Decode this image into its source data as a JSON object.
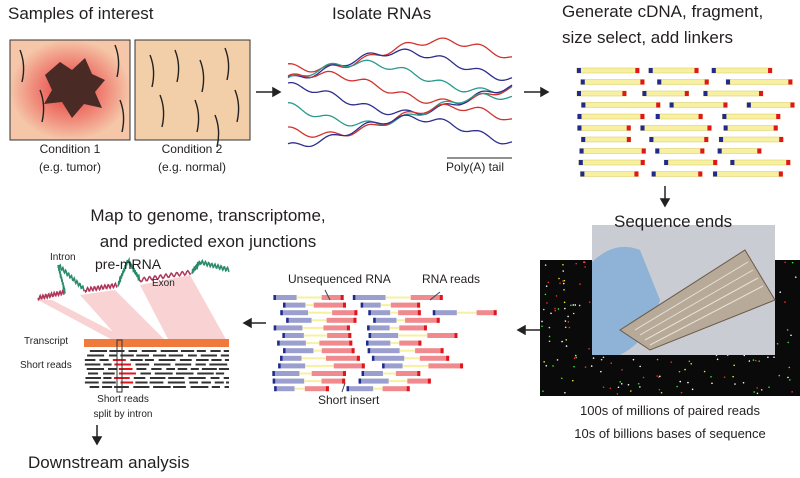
{
  "steps": {
    "samples": {
      "title": "Samples of interest",
      "condition1": "Condition 1",
      "condition1_note": "(e.g. tumor)",
      "condition2": "Condition 2",
      "condition2_note": "(e.g. normal)"
    },
    "isolate": {
      "title": "Isolate RNAs",
      "polya_label": "Poly(A) tail"
    },
    "cdna": {
      "title_line1": "Generate cDNA, fragment,",
      "title_line2": "size select, add linkers"
    },
    "sequence": {
      "title": "Sequence ends",
      "caption_line1": "100s of millions of paired reads",
      "caption_line2": "10s of billions bases of sequence"
    },
    "reads": {
      "unsequenced_label": "Unsequenced RNA",
      "reads_label": "RNA reads",
      "short_insert_label": "Short insert"
    },
    "map": {
      "title_line1": "Map to genome, transcriptome,",
      "title_line2": "and predicted exon junctions",
      "intron_label": "Intron",
      "premrna_label": "pre-mRNA",
      "exon_label": "Exon",
      "transcript_label": "Transcript",
      "short_reads_label": "Short reads",
      "split_line1": "Short reads",
      "split_line2": "split by intron"
    },
    "downstream": {
      "title": "Downstream analysis"
    }
  },
  "colors": {
    "linker_blue": "#1f2a8c",
    "linker_red": "#e0161d",
    "cdna_yellow": "#f7f0a0",
    "read_blue": "#9a9fd0",
    "read_red": "#f08a8e",
    "transcript_orange": "#f07a3c",
    "exon_highlight": "#f9d3d3"
  }
}
